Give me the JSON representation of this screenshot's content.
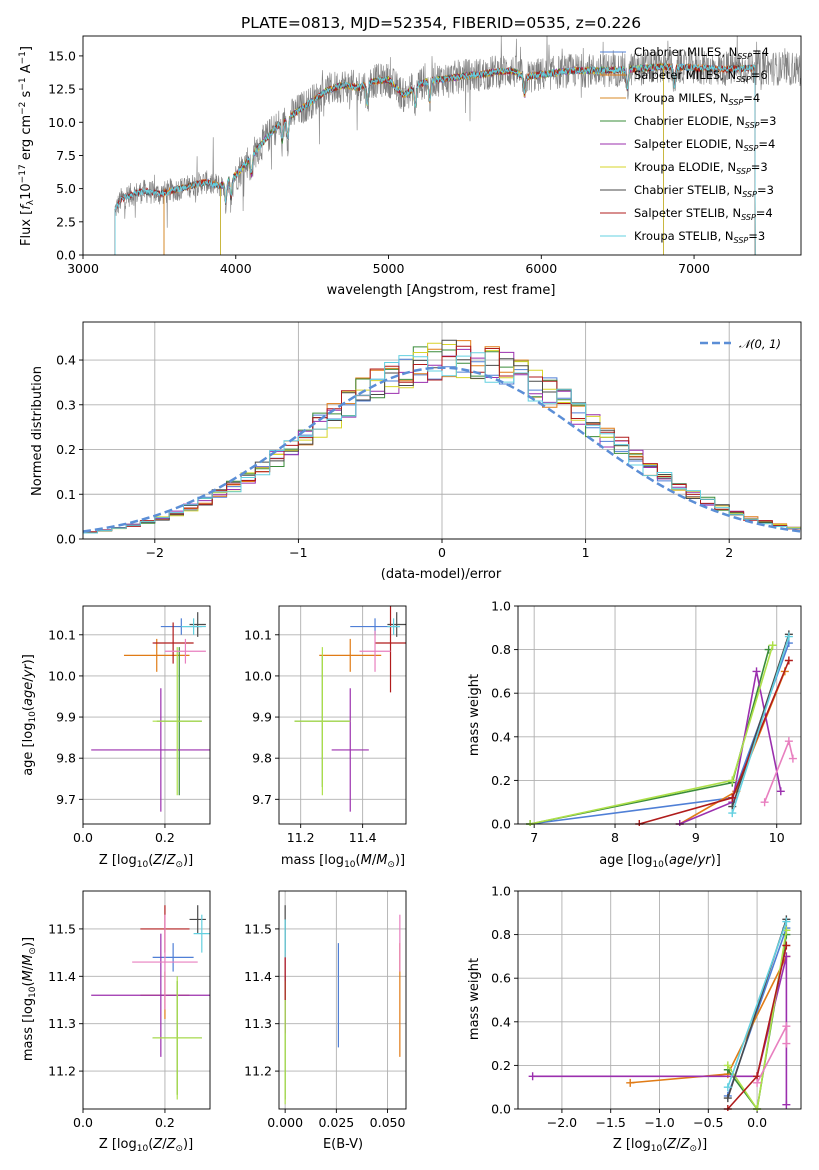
{
  "chart_data": [
    {
      "id": "spectrum",
      "type": "line",
      "title": "PLATE=0813, MJD=52354, FIBERID=0535, z=0.226",
      "xlabel": "wavelength [Angstrom, rest frame]",
      "ylabel": "Flux [f_λ10^{-17} erg cm^{-2} s^{-1} A^{-1}]",
      "xlim": [
        3000,
        7700
      ],
      "ylim": [
        0,
        16.5
      ],
      "xticks": [
        "3000",
        "4000",
        "5000",
        "6000",
        "7000"
      ],
      "yticks": [
        "0.0",
        "2.5",
        "5.0",
        "7.5",
        "10.0",
        "12.5",
        "15.0"
      ],
      "legend_position": "top-right",
      "models": [
        {
          "name": "Chabrier MILES, N_SSP=4",
          "color": "#4f7fd6",
          "x_range": [
            3530,
            7400
          ]
        },
        {
          "name": "Salpeter MILES, N_SSP=6",
          "color": "#e07b16",
          "x_range": [
            3530,
            7400
          ]
        },
        {
          "name": "Kroupa MILES, N_SSP=4",
          "color": "#d98a26",
          "x_range": [
            3530,
            7400
          ]
        },
        {
          "name": "Chabrier ELODIE, N_SSP=3",
          "color": "#3a8c3a",
          "x_range": [
            3900,
            6800
          ]
        },
        {
          "name": "Salpeter ELODIE, N_SSP=4",
          "color": "#9b2fae",
          "x_range": [
            3900,
            6800
          ]
        },
        {
          "name": "Kroupa ELODIE, N_SSP=3",
          "color": "#d7d42a",
          "x_range": [
            3900,
            6800
          ]
        },
        {
          "name": "Chabrier STELIB, N_SSP=3",
          "color": "#4a4a4a",
          "x_range": [
            3210,
            7400
          ]
        },
        {
          "name": "Salpeter STELIB, N_SSP=4",
          "color": "#b01c1c",
          "x_range": [
            3210,
            7400
          ]
        },
        {
          "name": "Kroupa STELIB, N_SSP=3",
          "color": "#63d0e0",
          "x_range": [
            3210,
            7400
          ]
        }
      ],
      "data_line": {
        "color": "#7f7f7f",
        "x_range": [
          3210,
          7740
        ]
      },
      "continuum_curve": {
        "x": [
          3210,
          3250,
          3300,
          3400,
          3500,
          3600,
          3700,
          3800,
          3900,
          4000,
          4100,
          4200,
          4300,
          4400,
          4500,
          4600,
          4700,
          4800,
          4900,
          5000,
          5100,
          5200,
          5300,
          5400,
          5500,
          5600,
          5700,
          5800,
          5900,
          6000,
          6200,
          6400,
          6600,
          6800,
          7000,
          7200,
          7400,
          7740
        ],
        "y": [
          3.4,
          4.2,
          4.5,
          4.8,
          4.6,
          4.9,
          5.2,
          5.5,
          5.2,
          6.0,
          7.4,
          8.8,
          10.0,
          10.8,
          11.6,
          12.4,
          12.8,
          12.6,
          13.1,
          13.2,
          12.0,
          12.9,
          13.2,
          13.3,
          13.5,
          13.6,
          13.8,
          13.9,
          13.4,
          13.6,
          13.9,
          13.9,
          14.0,
          14.2,
          14.1,
          14.0,
          14.1,
          14.0
        ]
      }
    },
    {
      "id": "residuals",
      "type": "line",
      "xlabel": "(data-model)/error",
      "ylabel": "Normed distribution",
      "xlim": [
        -2.5,
        2.5
      ],
      "ylim": [
        0,
        0.485
      ],
      "xticks": [
        "−2",
        "−1",
        "0",
        "1",
        "2"
      ],
      "yticks": [
        "0.0",
        "0.1",
        "0.2",
        "0.3",
        "0.4"
      ],
      "legend_position": "top-right",
      "legend_label": "𝒩(0, 1)",
      "gaussian_color": "#5b8ed6",
      "step_colors": [
        "#4f7fd6",
        "#e07b16",
        "#3a8c3a",
        "#9b2fae",
        "#d7d42a",
        "#4a4a4a",
        "#b01c1c",
        "#63d0e0"
      ]
    },
    {
      "id": "age_vs_Z",
      "type": "scatter",
      "xlabel": "Z [log10(Z/Z⊙)]",
      "ylabel": "age [log10(age/yr)]",
      "xlim": [
        0.0,
        0.31
      ],
      "ylim": [
        9.64,
        10.17
      ],
      "xticks": [
        "0.0",
        "0.2"
      ],
      "yticks": [
        "9.7",
        "9.8",
        "9.9",
        "10.0",
        "10.1"
      ],
      "points": [
        {
          "x": 0.24,
          "xerr": 0.05,
          "y": 10.12,
          "yerr": 0.02,
          "color": "#4f7fd6"
        },
        {
          "x": 0.18,
          "xerr": 0.08,
          "y": 10.05,
          "yerr": 0.04,
          "color": "#e07b16"
        },
        {
          "x": 0.235,
          "xerr": 0.055,
          "y": 9.89,
          "yerr": 0.18,
          "color": "#3a8c3a"
        },
        {
          "x": 0.19,
          "xerr": 0.17,
          "y": 9.82,
          "yerr": 0.15,
          "color": "#9b2fae"
        },
        {
          "x": 0.23,
          "xerr": 0.06,
          "y": 9.89,
          "yerr": 0.18,
          "color": "#aee04a"
        },
        {
          "x": 0.28,
          "xerr": 0.02,
          "y": 10.125,
          "yerr": 0.03,
          "color": "#4a4a4a"
        },
        {
          "x": 0.22,
          "xerr": 0.05,
          "y": 10.08,
          "yerr": 0.05,
          "color": "#b01c1c"
        },
        {
          "x": 0.27,
          "xerr": 0.03,
          "y": 10.12,
          "yerr": 0.02,
          "color": "#63d0e0"
        },
        {
          "x": 0.25,
          "xerr": 0.05,
          "y": 10.06,
          "yerr": 0.03,
          "color": "#e87fbf"
        }
      ]
    },
    {
      "id": "age_vs_mass",
      "type": "scatter",
      "xlabel": "mass [log10(M/M⊙)]",
      "ylabel": "",
      "xlim": [
        11.13,
        11.54
      ],
      "ylim": [
        9.64,
        10.17
      ],
      "xticks": [
        "11.2",
        "11.4"
      ],
      "yticks": [
        "9.7",
        "9.8",
        "9.9",
        "10.0",
        "10.1"
      ],
      "points": [
        {
          "x": 11.44,
          "xerr": 0.08,
          "y": 10.12,
          "yerr": 0.02,
          "color": "#4f7fd6"
        },
        {
          "x": 11.36,
          "xerr": 0.1,
          "y": 10.05,
          "yerr": 0.04,
          "color": "#e07b16"
        },
        {
          "x": 11.27,
          "xerr": 0.09,
          "y": 9.89,
          "yerr": 0.16,
          "color": "#3a8c3a"
        },
        {
          "x": 11.36,
          "xerr": 0.06,
          "y": 9.82,
          "yerr": 0.15,
          "color": "#9b2fae"
        },
        {
          "x": 11.27,
          "xerr": 0.09,
          "y": 9.89,
          "yerr": 0.18,
          "color": "#aee04a"
        },
        {
          "x": 11.51,
          "xerr": 0.03,
          "y": 10.125,
          "yerr": 0.03,
          "color": "#4a4a4a"
        },
        {
          "x": 11.49,
          "xerr": 0.05,
          "y": 10.08,
          "yerr": 0.12,
          "color": "#b01c1c"
        },
        {
          "x": 11.5,
          "xerr": 0.02,
          "y": 10.12,
          "yerr": 0.02,
          "color": "#63d0e0"
        },
        {
          "x": 11.44,
          "xerr": 0.05,
          "y": 10.06,
          "yerr": 0.05,
          "color": "#e87fbf"
        }
      ]
    },
    {
      "id": "weight_vs_age",
      "type": "line",
      "xlabel": "age [log10(age/yr)]",
      "ylabel": "mass weight",
      "xlim": [
        6.8,
        10.3
      ],
      "ylim": [
        0,
        1.0
      ],
      "xticks": [
        "7",
        "8",
        "9",
        "10"
      ],
      "yticks": [
        "0.0",
        "0.2",
        "0.4",
        "0.6",
        "0.8",
        "1.0"
      ],
      "series": [
        {
          "color": "#4f7fd6",
          "points": [
            [
              6.95,
              0.0
            ],
            [
              9.45,
              0.12
            ],
            [
              10.15,
              0.83
            ]
          ]
        },
        {
          "color": "#e07b16",
          "points": [
            [
              8.8,
              0.0
            ],
            [
              9.5,
              0.15
            ],
            [
              10.1,
              0.7
            ]
          ]
        },
        {
          "color": "#3a8c3a",
          "points": [
            [
              6.95,
              0.0
            ],
            [
              9.45,
              0.19
            ],
            [
              9.9,
              0.8
            ]
          ]
        },
        {
          "color": "#9b2fae",
          "points": [
            [
              8.8,
              0.0
            ],
            [
              9.45,
              0.1
            ],
            [
              9.75,
              0.7
            ],
            [
              10.05,
              0.15
            ]
          ]
        },
        {
          "color": "#aee04a",
          "points": [
            [
              6.95,
              0.0
            ],
            [
              9.45,
              0.2
            ],
            [
              9.95,
              0.82
            ]
          ]
        },
        {
          "color": "#4a4a4a",
          "points": [
            [
              9.45,
              0.08
            ],
            [
              10.15,
              0.87
            ]
          ]
        },
        {
          "color": "#b01c1c",
          "points": [
            [
              8.3,
              0.0
            ],
            [
              9.45,
              0.12
            ],
            [
              10.15,
              0.75
            ]
          ]
        },
        {
          "color": "#63d0e0",
          "points": [
            [
              9.45,
              0.05
            ],
            [
              10.15,
              0.86
            ]
          ]
        },
        {
          "color": "#e87fbf",
          "points": [
            [
              9.85,
              0.1
            ],
            [
              10.15,
              0.38
            ],
            [
              10.2,
              0.3
            ]
          ]
        }
      ]
    },
    {
      "id": "mass_vs_Z",
      "type": "scatter",
      "xlabel": "Z [log10(Z/Z⊙)]",
      "ylabel": "mass [log10(M/M⊙)]",
      "xlim": [
        0.0,
        0.31
      ],
      "ylim": [
        11.12,
        11.58
      ],
      "xticks": [
        "0.0",
        "0.2"
      ],
      "yticks": [
        "11.2",
        "11.3",
        "11.4",
        "11.5"
      ],
      "points": [
        {
          "x": 0.22,
          "xerr": 0.05,
          "y": 11.44,
          "yerr": 0.03,
          "color": "#4f7fd6"
        },
        {
          "x": 0.2,
          "xerr": 0.06,
          "y": 11.36,
          "yerr": 0.05,
          "color": "#e07b16"
        },
        {
          "x": 0.23,
          "xerr": 0.06,
          "y": 11.27,
          "yerr": 0.12,
          "color": "#3a8c3a"
        },
        {
          "x": 0.19,
          "xerr": 0.17,
          "y": 11.36,
          "yerr": 0.13,
          "color": "#9b2fae"
        },
        {
          "x": 0.23,
          "xerr": 0.06,
          "y": 11.27,
          "yerr": 0.13,
          "color": "#aee04a"
        },
        {
          "x": 0.28,
          "xerr": 0.02,
          "y": 11.52,
          "yerr": 0.03,
          "color": "#4a4a4a"
        },
        {
          "x": 0.2,
          "xerr": 0.06,
          "y": 11.5,
          "yerr": 0.05,
          "color": "#b01c1c"
        },
        {
          "x": 0.29,
          "xerr": 0.02,
          "y": 11.49,
          "yerr": 0.04,
          "color": "#63d0e0"
        },
        {
          "x": 0.2,
          "xerr": 0.08,
          "y": 11.43,
          "yerr": 0.1,
          "color": "#e87fbf"
        }
      ]
    },
    {
      "id": "mass_vs_ebv",
      "type": "scatter",
      "xlabel": "E(B-V)",
      "ylabel": "",
      "xlim": [
        -0.003,
        0.059
      ],
      "ylim": [
        11.12,
        11.58
      ],
      "xticks": [
        "0.000",
        "0.025",
        "0.050"
      ],
      "yticks": [
        "11.2",
        "11.3",
        "11.4",
        "11.5"
      ],
      "points": [
        {
          "x": 0.026,
          "xerr": 0.0,
          "y": 11.36,
          "yerr": 0.11,
          "color": "#4f7fd6"
        },
        {
          "x": 0.056,
          "xerr": 0.0,
          "y": 11.35,
          "yerr": 0.12,
          "color": "#e07b16"
        },
        {
          "x": 0.0,
          "xerr": 0.0,
          "y": 11.27,
          "yerr": 0.13,
          "color": "#3a8c3a"
        },
        {
          "x": 0.0,
          "xerr": 0.0,
          "y": 11.36,
          "yerr": 0.08,
          "color": "#9b2fae"
        },
        {
          "x": 0.0,
          "xerr": 0.0,
          "y": 11.26,
          "yerr": 0.13,
          "color": "#aee04a"
        },
        {
          "x": 0.0,
          "xerr": 0.0,
          "y": 11.5,
          "yerr": 0.05,
          "color": "#4a4a4a"
        },
        {
          "x": 0.0,
          "xerr": 0.0,
          "y": 11.4,
          "yerr": 0.05,
          "color": "#b01c1c"
        },
        {
          "x": 0.0,
          "xerr": 0.0,
          "y": 11.48,
          "yerr": 0.04,
          "color": "#63d0e0"
        },
        {
          "x": 0.056,
          "xerr": 0.0,
          "y": 11.47,
          "yerr": 0.06,
          "color": "#e87fbf"
        }
      ]
    },
    {
      "id": "weight_vs_Z",
      "type": "line",
      "xlabel": "Z [log10(Z/Z⊙)]",
      "ylabel": "mass weight",
      "xlim": [
        -2.45,
        0.45
      ],
      "ylim": [
        0,
        1.0
      ],
      "xticks": [
        "−2.0",
        "−1.5",
        "−1.0",
        "−0.5",
        "0.0"
      ],
      "yticks": [
        "0.0",
        "0.2",
        "0.4",
        "0.6",
        "0.8",
        "1.0"
      ],
      "series": [
        {
          "color": "#4f7fd6",
          "points": [
            [
              -0.3,
              0.06
            ],
            [
              0.3,
              0.83
            ]
          ]
        },
        {
          "color": "#e07b16",
          "points": [
            [
              -1.3,
              0.12
            ],
            [
              -0.3,
              0.16
            ],
            [
              0.3,
              0.7
            ]
          ]
        },
        {
          "color": "#3a8c3a",
          "points": [
            [
              -0.3,
              0.18
            ],
            [
              0.0,
              0.0
            ],
            [
              0.3,
              0.8
            ]
          ]
        },
        {
          "color": "#9b2fae",
          "points": [
            [
              -2.3,
              0.15
            ],
            [
              0.0,
              0.15
            ],
            [
              0.3,
              0.7
            ],
            [
              0.3,
              0.02
            ]
          ]
        },
        {
          "color": "#aee04a",
          "points": [
            [
              -0.3,
              0.2
            ],
            [
              0.0,
              0.0
            ],
            [
              0.3,
              0.82
            ]
          ]
        },
        {
          "color": "#4a4a4a",
          "points": [
            [
              -0.3,
              0.05
            ],
            [
              0.3,
              0.87
            ]
          ]
        },
        {
          "color": "#b01c1c",
          "points": [
            [
              -0.3,
              0.0
            ],
            [
              0.0,
              0.15
            ],
            [
              0.3,
              0.75
            ]
          ]
        },
        {
          "color": "#63d0e0",
          "points": [
            [
              -0.3,
              0.1
            ],
            [
              0.3,
              0.86
            ]
          ]
        },
        {
          "color": "#e87fbf",
          "points": [
            [
              0.0,
              0.12
            ],
            [
              0.3,
              0.38
            ],
            [
              0.3,
              0.3
            ]
          ]
        }
      ]
    }
  ]
}
